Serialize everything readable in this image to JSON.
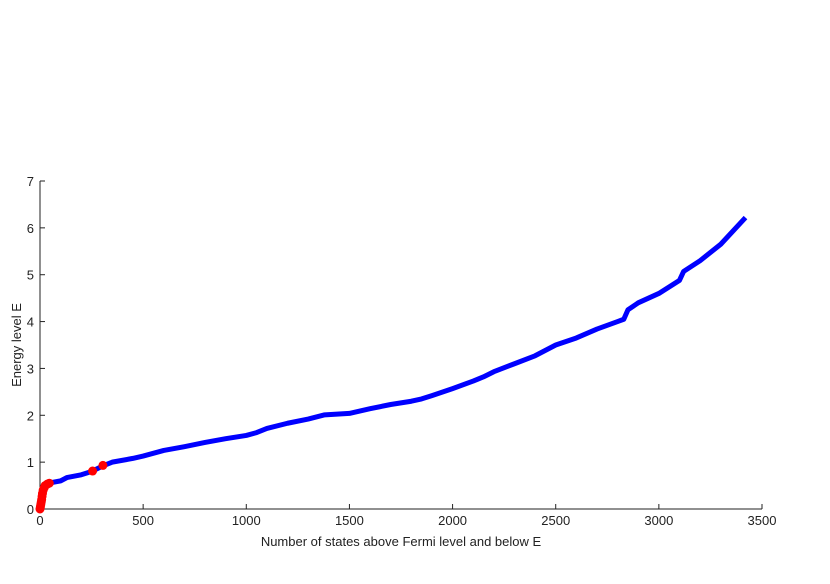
{
  "chart_data": {
    "type": "line",
    "xlabel": "Number of states above Fermi level and below E",
    "ylabel": "Energy level E",
    "xlim": [
      0,
      3500
    ],
    "xticks": [
      0,
      500,
      1000,
      1500,
      2000,
      2500,
      3000,
      3500
    ],
    "ylim": [
      0,
      7
    ],
    "yticks": [
      0,
      1,
      2,
      3,
      4,
      5,
      6,
      7
    ],
    "series": [
      {
        "color": "#0000ff",
        "mode": "line",
        "x": [
          0,
          10,
          20,
          40,
          100,
          130,
          200,
          250,
          310,
          350,
          450,
          500,
          600,
          700,
          800,
          900,
          1000,
          1050,
          1100,
          1200,
          1300,
          1380,
          1500,
          1600,
          1700,
          1800,
          1850,
          1900,
          2000,
          2100,
          2150,
          2200,
          2300,
          2400,
          2500,
          2600,
          2700,
          2800,
          2830,
          2850,
          2900,
          3000,
          3100,
          3120,
          3200,
          3300,
          3420
        ],
        "values": [
          0,
          0.3,
          0.45,
          0.55,
          0.6,
          0.67,
          0.73,
          0.8,
          0.93,
          1.0,
          1.08,
          1.13,
          1.25,
          1.33,
          1.42,
          1.5,
          1.57,
          1.63,
          1.72,
          1.83,
          1.92,
          2.01,
          2.04,
          2.14,
          2.23,
          2.3,
          2.35,
          2.42,
          2.57,
          2.73,
          2.82,
          2.93,
          3.1,
          3.27,
          3.5,
          3.65,
          3.84,
          4.0,
          4.05,
          4.25,
          4.4,
          4.6,
          4.88,
          5.07,
          5.3,
          5.65,
          6.22
        ]
      },
      {
        "color": "#ff0000",
        "mode": "markers",
        "x": [
          0,
          2,
          4,
          6,
          8,
          10,
          12,
          15,
          20,
          25,
          35,
          45,
          255,
          305
        ],
        "values": [
          0,
          0.05,
          0.1,
          0.15,
          0.2,
          0.27,
          0.33,
          0.4,
          0.45,
          0.5,
          0.53,
          0.55,
          0.81,
          0.93
        ]
      }
    ]
  }
}
